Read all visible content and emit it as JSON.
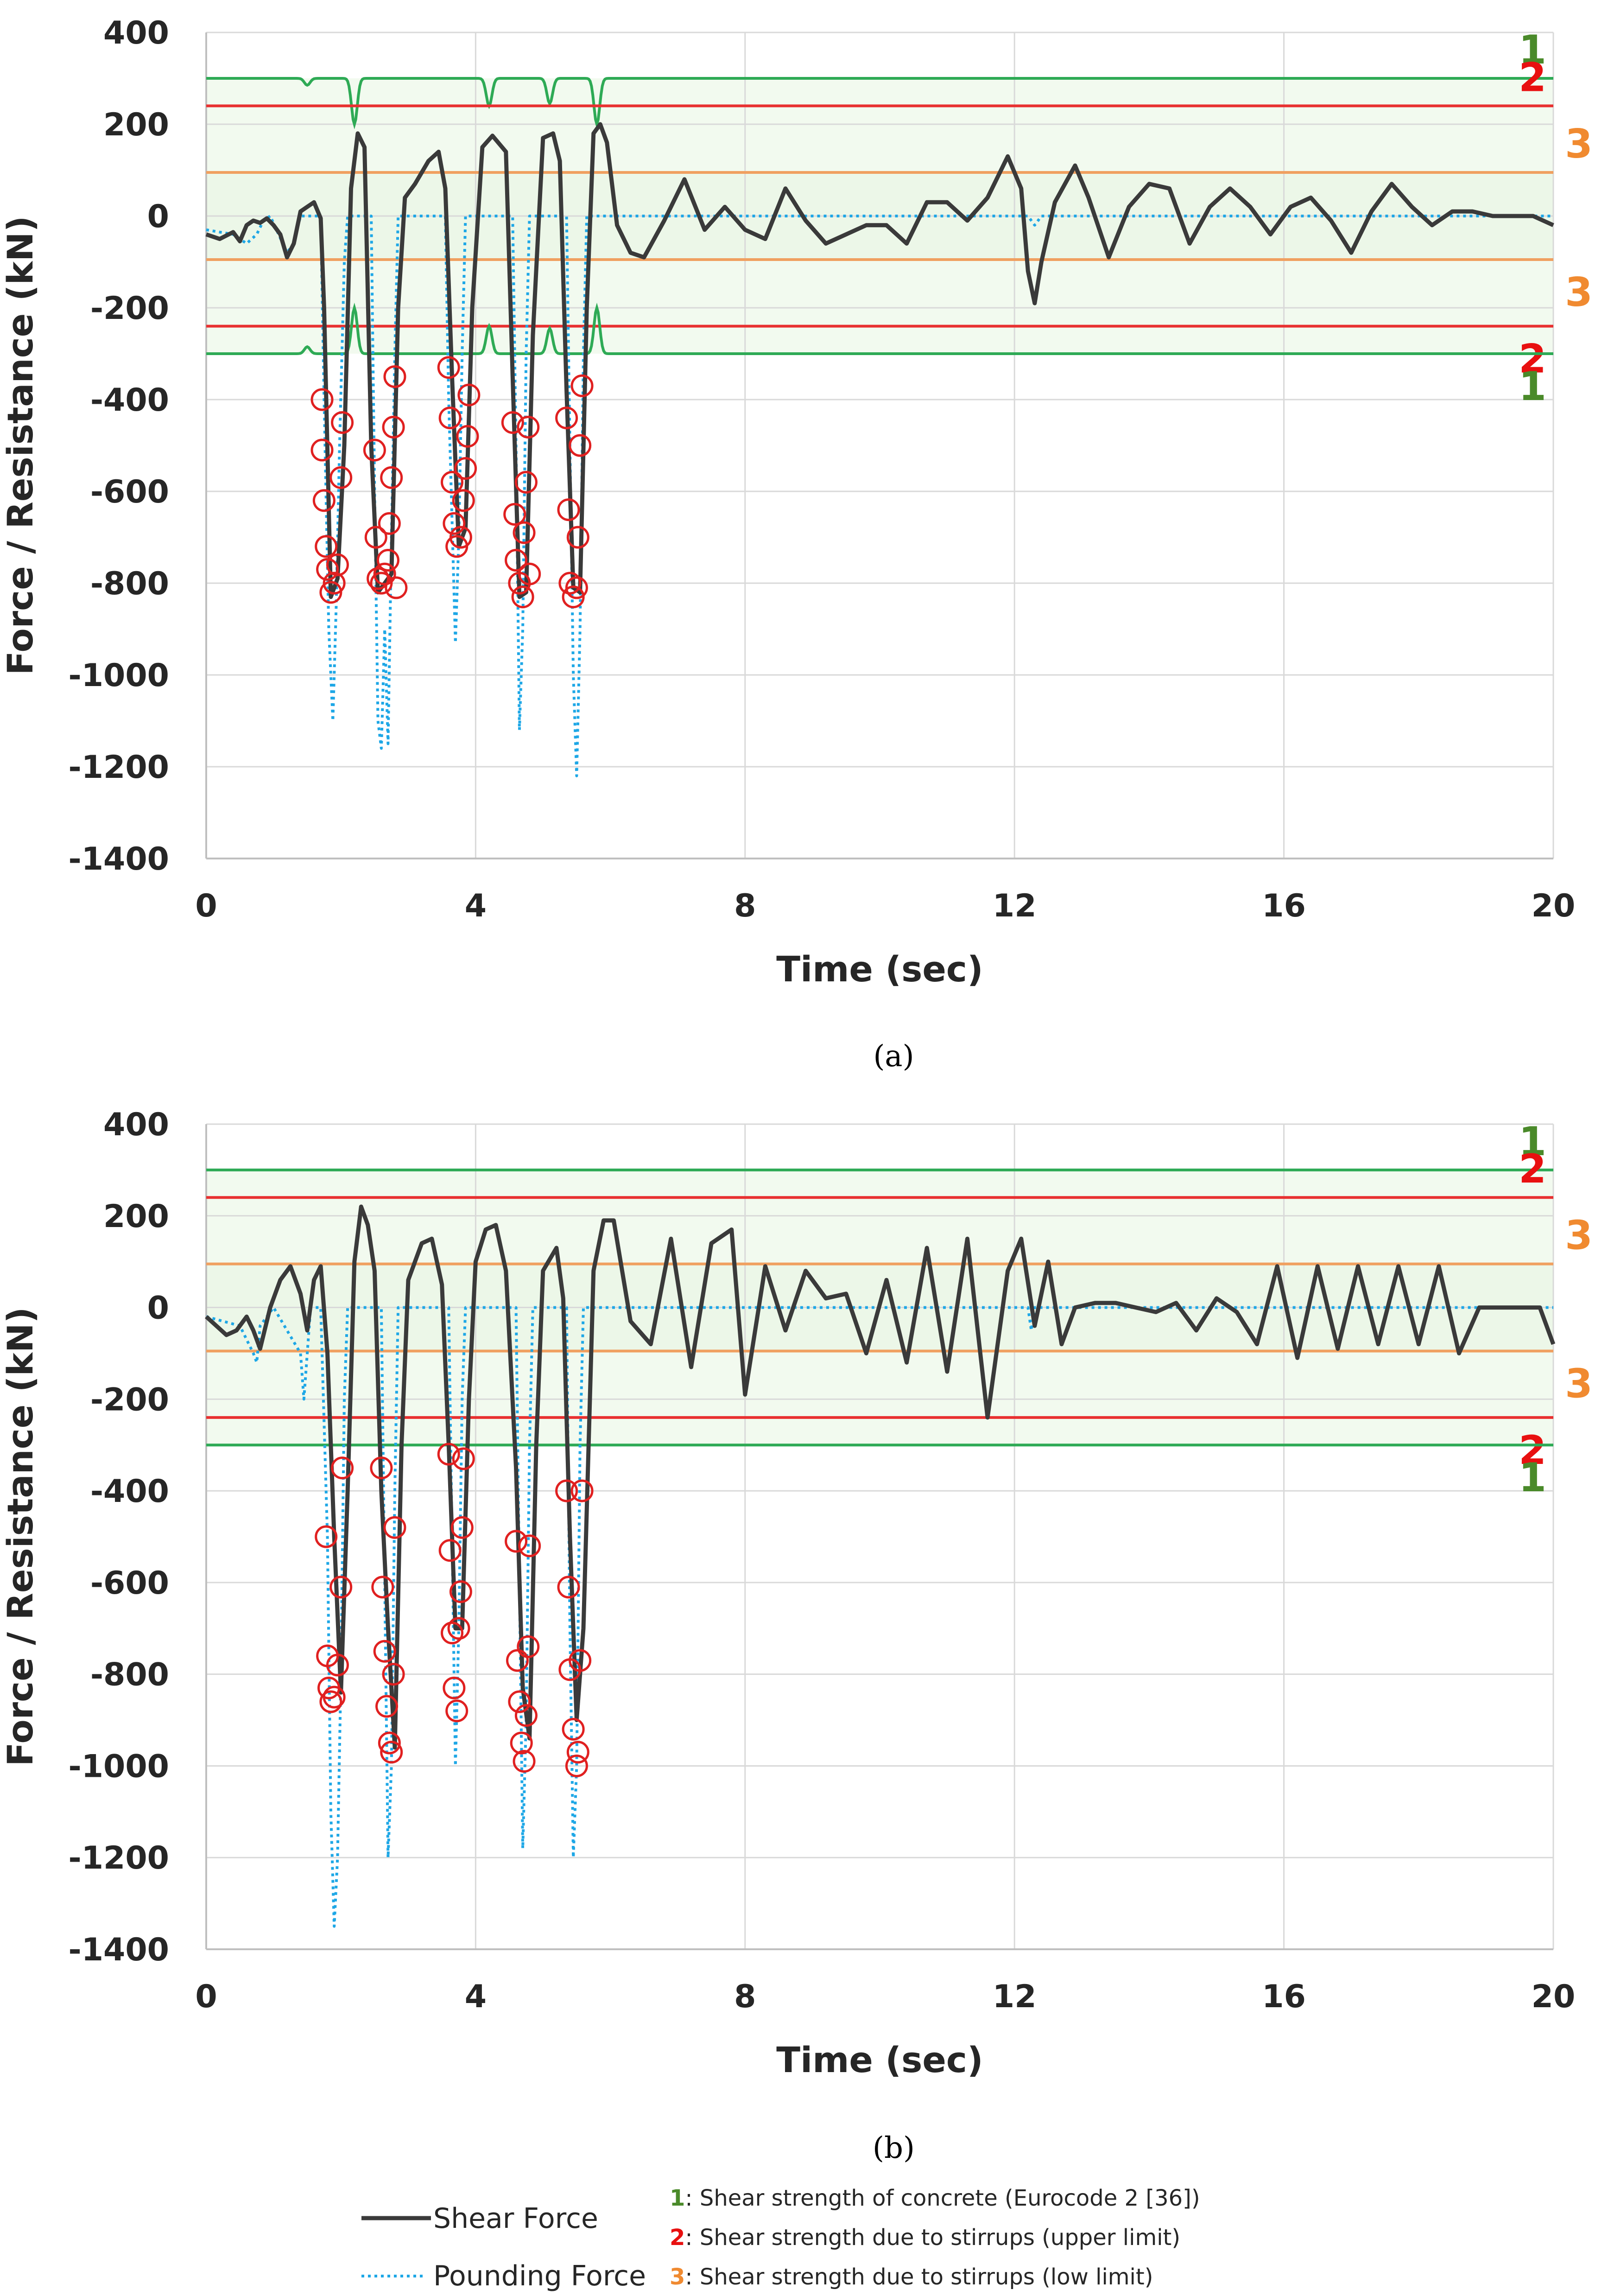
{
  "colors": {
    "shear": "#3a3a3a",
    "pounding": "#1ea7e6",
    "level1": "#2eaa55",
    "level1_label": "#4a8a2a",
    "level2": "#e83030",
    "level2_label": "#e81010",
    "level3": "#f0a060",
    "level3_label": "#f08a30",
    "marker": "#e02020",
    "band": "#e8f5e2",
    "grid": "#d9d9d9"
  },
  "legend": {
    "shear_label": "Shear Force",
    "pounding_label": "Pounding Force",
    "items": [
      {
        "num": "1",
        "sep": ": ",
        "text": "Shear strength of concrete (Eurocode 2 [36])"
      },
      {
        "num": "2",
        "sep": ": ",
        "text": "Shear strength due to stirrups (upper limit)"
      },
      {
        "num": "3",
        "sep": ": ",
        "text": "Shear strength due to stirrups (low limit)"
      }
    ]
  },
  "chart_data": [
    {
      "type": "line",
      "panel": "(a)",
      "xlabel": "Time (sec)",
      "ylabel": "Force / Resistance (kN)",
      "xlim": [
        0,
        20
      ],
      "ylim": [
        -1400,
        400
      ],
      "xticks": [
        0,
        4,
        8,
        12,
        16,
        20
      ],
      "yticks": [
        400,
        200,
        0,
        -200,
        -400,
        -600,
        -800,
        -1000,
        -1200,
        -1400
      ],
      "reference_lines": [
        {
          "level": "1",
          "value": 300,
          "label_side": "upper"
        },
        {
          "level": "2",
          "value": 240,
          "label_side": "upper"
        },
        {
          "level": "3",
          "value": 95,
          "label_side": "upper"
        },
        {
          "level": "3",
          "value": -95,
          "label_side": "lower"
        },
        {
          "level": "2",
          "value": -240,
          "label_side": "lower"
        },
        {
          "level": "1",
          "value": -300,
          "label_side": "lower"
        }
      ],
      "level1_dips": [
        [
          1.5,
          15
        ],
        [
          2.2,
          100
        ],
        [
          4.2,
          60
        ],
        [
          5.1,
          55
        ],
        [
          5.8,
          100
        ]
      ],
      "shear_series": {
        "name": "Shear Force",
        "x": [
          0,
          0.2,
          0.4,
          0.5,
          0.6,
          0.7,
          0.8,
          0.9,
          1.0,
          1.1,
          1.2,
          1.3,
          1.4,
          1.5,
          1.6,
          1.7,
          1.75,
          1.85,
          1.95,
          2.05,
          2.15,
          2.25,
          2.35,
          2.45,
          2.55,
          2.65,
          2.75,
          2.85,
          2.95,
          3.1,
          3.3,
          3.45,
          3.55,
          3.65,
          3.75,
          3.85,
          3.95,
          4.1,
          4.25,
          4.45,
          4.55,
          4.65,
          4.75,
          4.85,
          5.0,
          5.15,
          5.25,
          5.35,
          5.45,
          5.55,
          5.65,
          5.75,
          5.85,
          5.95,
          6.1,
          6.3,
          6.5,
          6.8,
          7.1,
          7.4,
          7.7,
          8.0,
          8.3,
          8.6,
          8.9,
          9.2,
          9.5,
          9.8,
          10.1,
          10.4,
          10.7,
          11.0,
          11.3,
          11.6,
          11.9,
          12.1,
          12.2,
          12.3,
          12.4,
          12.6,
          12.9,
          13.1,
          13.4,
          13.7,
          14.0,
          14.3,
          14.6,
          14.9,
          15.2,
          15.5,
          15.8,
          16.1,
          16.4,
          16.7,
          17.0,
          17.3,
          17.6,
          17.9,
          18.2,
          18.5,
          18.8,
          19.1,
          19.4,
          19.7,
          20.0
        ],
        "y": [
          -40,
          -50,
          -35,
          -55,
          -20,
          -10,
          -15,
          -5,
          -20,
          -40,
          -90,
          -60,
          10,
          20,
          30,
          -5,
          -200,
          -830,
          -790,
          -500,
          60,
          180,
          150,
          -500,
          -820,
          -800,
          -780,
          -200,
          40,
          70,
          120,
          140,
          60,
          -350,
          -720,
          -680,
          -200,
          150,
          175,
          140,
          -350,
          -830,
          -820,
          -260,
          170,
          180,
          120,
          -380,
          -810,
          -820,
          -200,
          180,
          200,
          160,
          -20,
          -80,
          -90,
          -10,
          80,
          -30,
          20,
          -30,
          -50,
          60,
          -10,
          -60,
          -40,
          -20,
          -20,
          -60,
          30,
          30,
          -10,
          40,
          130,
          60,
          -120,
          -190,
          -100,
          30,
          110,
          40,
          -90,
          20,
          70,
          60,
          -60,
          20,
          60,
          20,
          -40,
          20,
          40,
          -10,
          -80,
          10,
          70,
          20,
          -20,
          10,
          10,
          0,
          0,
          0,
          -20
        ]
      },
      "pounding_series": {
        "name": "Pounding Force",
        "x": [
          0,
          0.4,
          0.6,
          0.75,
          0.85,
          0.95,
          1.2,
          1.3,
          1.4,
          1.7,
          1.75,
          1.82,
          1.88,
          1.93,
          1.98,
          2.05,
          2.1,
          2.45,
          2.5,
          2.55,
          2.6,
          2.65,
          2.7,
          2.75,
          2.8,
          2.85,
          3.55,
          3.6,
          3.7,
          3.75,
          3.8,
          3.85,
          4.55,
          4.6,
          4.65,
          4.7,
          4.75,
          4.8,
          5.35,
          5.4,
          5.45,
          5.5,
          5.55,
          5.6,
          5.65,
          12.2,
          12.3,
          12.4,
          20.0
        ],
        "y": [
          -30,
          -40,
          -60,
          -40,
          -10,
          0,
          -80,
          -60,
          0,
          0,
          -400,
          -900,
          -1100,
          -850,
          -500,
          -100,
          0,
          0,
          -600,
          -1100,
          -1160,
          -900,
          -1150,
          -700,
          -300,
          0,
          0,
          -400,
          -930,
          -700,
          -300,
          0,
          0,
          -500,
          -1120,
          -900,
          -300,
          0,
          0,
          -500,
          -1000,
          -1220,
          -900,
          -300,
          0,
          0,
          -20,
          0,
          0
        ]
      },
      "markers": {
        "x": [
          1.72,
          1.72,
          1.75,
          1.78,
          1.8,
          1.85,
          1.9,
          1.95,
          2.0,
          2.02,
          2.5,
          2.52,
          2.55,
          2.6,
          2.65,
          2.7,
          2.72,
          2.75,
          2.78,
          2.8,
          2.82,
          3.6,
          3.62,
          3.65,
          3.68,
          3.72,
          3.78,
          3.82,
          3.85,
          3.88,
          3.9,
          4.55,
          4.58,
          4.6,
          4.65,
          4.7,
          4.72,
          4.75,
          4.78,
          4.8,
          5.35,
          5.38,
          5.4,
          5.45,
          5.5,
          5.52,
          5.55,
          5.58
        ],
        "y": [
          -400,
          -510,
          -620,
          -720,
          -770,
          -820,
          -800,
          -760,
          -570,
          -450,
          -510,
          -700,
          -790,
          -800,
          -780,
          -750,
          -670,
          -570,
          -460,
          -350,
          -810,
          -330,
          -440,
          -580,
          -670,
          -720,
          -700,
          -620,
          -550,
          -480,
          -390,
          -450,
          -650,
          -750,
          -800,
          -830,
          -690,
          -580,
          -460,
          -780,
          -440,
          -640,
          -800,
          -830,
          -810,
          -700,
          -500,
          -370
        ]
      }
    },
    {
      "type": "line",
      "panel": "(b)",
      "xlabel": "Time (sec)",
      "ylabel": "Force / Resistance (kN)",
      "xlim": [
        0,
        20
      ],
      "ylim": [
        -1400,
        400
      ],
      "xticks": [
        0,
        4,
        8,
        12,
        16,
        20
      ],
      "yticks": [
        400,
        200,
        0,
        -200,
        -400,
        -600,
        -800,
        -1000,
        -1200,
        -1400
      ],
      "reference_lines": [
        {
          "level": "1",
          "value": 300,
          "label_side": "upper"
        },
        {
          "level": "2",
          "value": 240,
          "label_side": "upper"
        },
        {
          "level": "3",
          "value": 95,
          "label_side": "upper"
        },
        {
          "level": "3",
          "value": -95,
          "label_side": "lower"
        },
        {
          "level": "2",
          "value": -240,
          "label_side": "lower"
        },
        {
          "level": "1",
          "value": -300,
          "label_side": "lower"
        }
      ],
      "level1_dips": [],
      "shear_series": {
        "name": "Shear Force",
        "x": [
          0,
          0.15,
          0.3,
          0.45,
          0.6,
          0.7,
          0.8,
          0.95,
          1.1,
          1.25,
          1.4,
          1.5,
          1.6,
          1.7,
          1.8,
          1.9,
          2.0,
          2.1,
          2.2,
          2.3,
          2.4,
          2.5,
          2.6,
          2.7,
          2.8,
          2.9,
          3.0,
          3.2,
          3.35,
          3.5,
          3.6,
          3.7,
          3.8,
          3.9,
          4.0,
          4.15,
          4.3,
          4.45,
          4.6,
          4.7,
          4.8,
          4.9,
          5.0,
          5.2,
          5.3,
          5.4,
          5.5,
          5.6,
          5.75,
          5.9,
          6.05,
          6.3,
          6.6,
          6.9,
          7.2,
          7.5,
          7.8,
          8.0,
          8.3,
          8.6,
          8.9,
          9.2,
          9.5,
          9.8,
          10.1,
          10.4,
          10.7,
          11.0,
          11.3,
          11.6,
          11.9,
          12.1,
          12.3,
          12.5,
          12.7,
          12.9,
          13.2,
          13.5,
          13.8,
          14.1,
          14.4,
          14.7,
          15.0,
          15.3,
          15.6,
          15.9,
          16.2,
          16.5,
          16.8,
          17.1,
          17.4,
          17.7,
          18.0,
          18.3,
          18.6,
          18.9,
          19.2,
          19.5,
          19.8,
          20.0
        ],
        "y": [
          -20,
          -40,
          -60,
          -50,
          -20,
          -50,
          -90,
          0,
          60,
          90,
          30,
          -50,
          60,
          90,
          -100,
          -500,
          -840,
          -400,
          100,
          220,
          180,
          80,
          -400,
          -700,
          -960,
          -300,
          60,
          140,
          150,
          50,
          -300,
          -700,
          -700,
          -200,
          100,
          170,
          180,
          80,
          -350,
          -830,
          -940,
          -300,
          80,
          130,
          20,
          -500,
          -900,
          -700,
          80,
          190,
          190,
          -30,
          -80,
          150,
          -130,
          140,
          170,
          -190,
          90,
          -50,
          80,
          20,
          30,
          -100,
          60,
          -120,
          130,
          -140,
          150,
          -240,
          80,
          150,
          -40,
          100,
          -80,
          0,
          10,
          10,
          0,
          -10,
          10,
          -50,
          20,
          -10,
          -80,
          90,
          -110,
          90,
          -90,
          90,
          -80,
          90,
          -80,
          90,
          -100,
          0,
          0,
          0,
          0,
          -80
        ]
      },
      "pounding_series": {
        "name": "Pounding Force",
        "x": [
          0,
          0.5,
          0.7,
          0.75,
          0.8,
          1.0,
          1.4,
          1.45,
          1.55,
          1.7,
          1.8,
          1.85,
          1.9,
          1.95,
          2.0,
          2.05,
          2.1,
          2.6,
          2.65,
          2.7,
          2.75,
          2.8,
          2.85,
          3.6,
          3.65,
          3.7,
          3.75,
          3.8,
          3.85,
          4.6,
          4.65,
          4.7,
          4.75,
          4.8,
          4.85,
          5.35,
          5.4,
          5.45,
          5.5,
          5.55,
          5.6,
          12.2,
          12.25,
          12.3,
          20.0
        ],
        "y": [
          -20,
          -40,
          -100,
          -120,
          -40,
          0,
          -100,
          -200,
          0,
          0,
          -500,
          -1100,
          -1350,
          -1200,
          -800,
          -200,
          0,
          0,
          -600,
          -1200,
          -1000,
          -400,
          0,
          0,
          -500,
          -1000,
          -700,
          -200,
          0,
          0,
          -600,
          -1180,
          -900,
          -300,
          0,
          0,
          -700,
          -1200,
          -1000,
          -300,
          0,
          0,
          -50,
          0,
          0
        ]
      },
      "markers": {
        "x": [
          1.78,
          1.8,
          1.82,
          1.85,
          1.9,
          1.95,
          2.0,
          2.02,
          2.6,
          2.62,
          2.65,
          2.68,
          2.72,
          2.75,
          2.78,
          2.8,
          3.6,
          3.62,
          3.65,
          3.68,
          3.72,
          3.75,
          3.78,
          3.8,
          3.82,
          4.6,
          4.62,
          4.65,
          4.68,
          4.72,
          4.75,
          4.78,
          4.8,
          5.35,
          5.38,
          5.4,
          5.45,
          5.5,
          5.52,
          5.55,
          5.58
        ],
        "y": [
          -500,
          -760,
          -830,
          -860,
          -850,
          -780,
          -610,
          -350,
          -350,
          -610,
          -750,
          -870,
          -950,
          -970,
          -800,
          -480,
          -320,
          -530,
          -710,
          -830,
          -880,
          -700,
          -620,
          -480,
          -330,
          -510,
          -770,
          -860,
          -950,
          -990,
          -890,
          -740,
          -520,
          -400,
          -610,
          -790,
          -920,
          -1000,
          -970,
          -770,
          -400
        ]
      }
    }
  ]
}
